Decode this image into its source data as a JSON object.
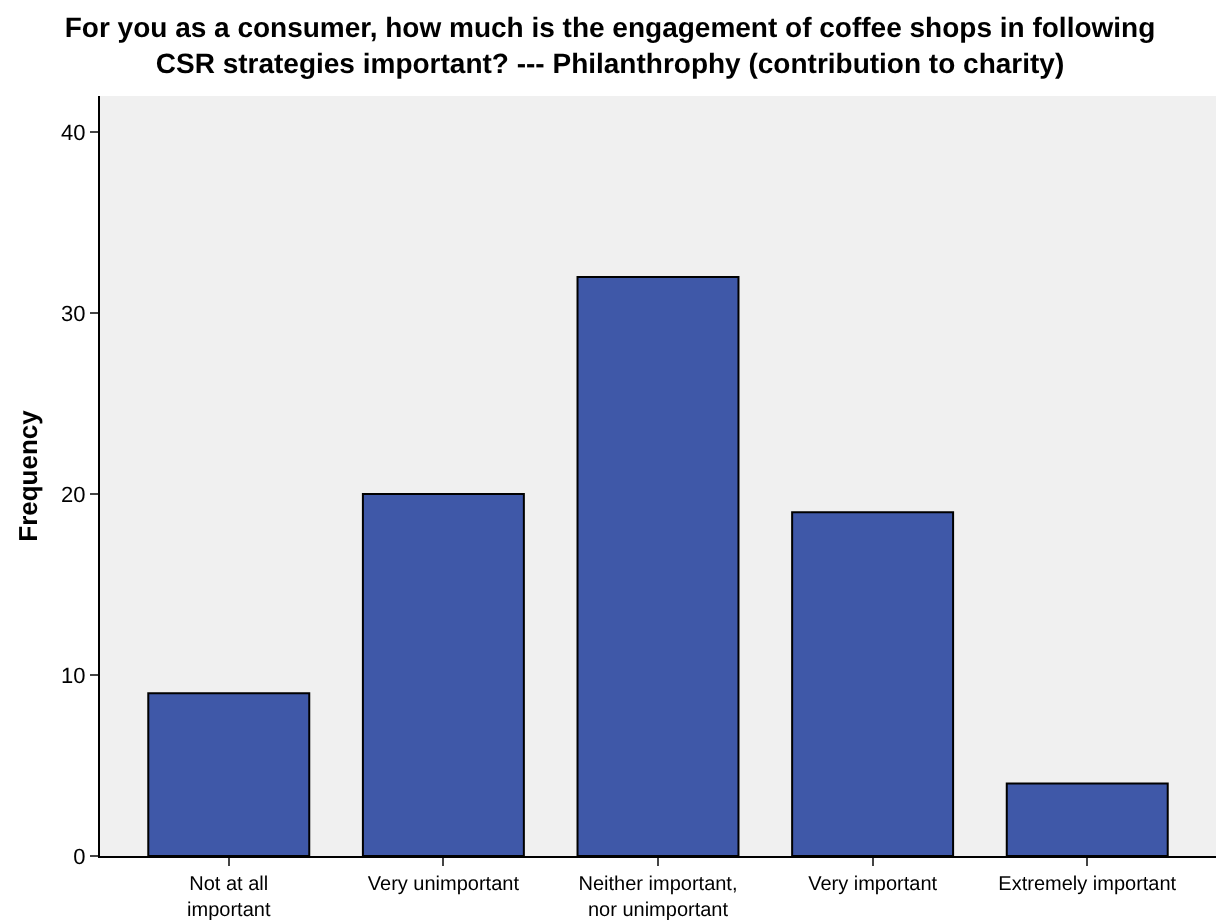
{
  "chart_data": {
    "type": "bar",
    "title": "For you as a consumer, how much is the engagement of coffee shops in following CSR strategies important? --- Philanthrophy (contribution to charity)",
    "ylabel": "Frequency",
    "categories": [
      "Not at all important",
      "Very unimportant",
      "Neither important, nor unimportant",
      "Very important",
      "Extremely important"
    ],
    "values": [
      9,
      20,
      32,
      19,
      4
    ],
    "color": "#3f58a8",
    "ylim": [
      0,
      42
    ],
    "yticks": [
      0,
      10,
      20,
      30,
      40
    ],
    "grid": false
  }
}
